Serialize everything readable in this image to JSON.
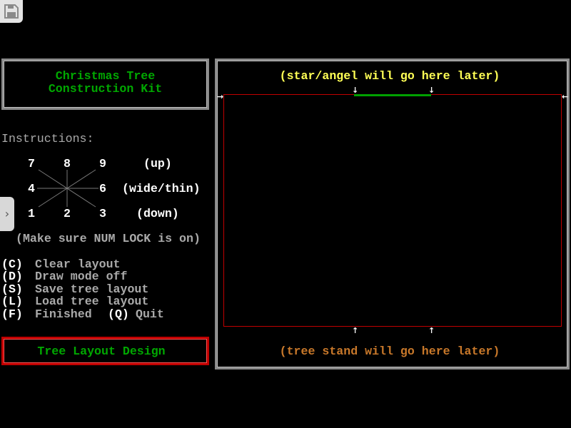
{
  "toolbar": {
    "save_icon": "floppy-disk-icon"
  },
  "side_tab": {
    "icon": "chevron-right-icon",
    "glyph": "›"
  },
  "title": {
    "line1": "Christmas Tree",
    "line2": "Construction Kit"
  },
  "instructions": {
    "heading": "Instructions:",
    "keys": {
      "k7": "7",
      "k8": "8",
      "k9": "9",
      "k4": "4",
      "k6": "6",
      "k1": "1",
      "k2": "2",
      "k3": "3"
    },
    "up": "(up)",
    "wide_thin": "(wide/thin)",
    "down": "(down)",
    "numlock_note": "(Make sure NUM LOCK is on)"
  },
  "menu": [
    {
      "key": "(C)",
      "label": "Clear layout"
    },
    {
      "key": "(D)",
      "label": "Draw mode off"
    },
    {
      "key": "(S)",
      "label": "Save tree layout"
    },
    {
      "key": "(L)",
      "label": "Load tree layout"
    },
    {
      "key": "(F)",
      "label": "Finished",
      "extra_key": "(Q)",
      "extra_label": "Quit"
    }
  ],
  "mode": {
    "label": "Tree Layout Design"
  },
  "canvas": {
    "top_note": "(star/angel will go here later)",
    "bottom_note": "(tree stand will go here later)"
  },
  "colors": {
    "title": "#00a800",
    "star_note": "#ffff55",
    "stand_note": "#c8782a",
    "frame": "#c00000",
    "trunk_line": "#00a000"
  }
}
